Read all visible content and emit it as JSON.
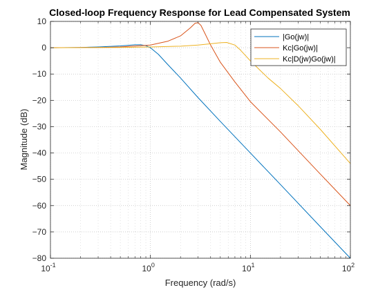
{
  "chart_data": {
    "type": "line",
    "title": "Closed-loop Frequency Response for Lead Compensated System",
    "xlabel": "Frequency (rad/s)",
    "ylabel": "Magnitude (dB)",
    "xscale": "log",
    "xlim": [
      0.1,
      100
    ],
    "ylim": [
      -80,
      10
    ],
    "x_ticks": [
      {
        "value": 0.1,
        "base": "10",
        "exp": "-1"
      },
      {
        "value": 1,
        "base": "10",
        "exp": "0"
      },
      {
        "value": 10,
        "base": "10",
        "exp": "1"
      },
      {
        "value": 100,
        "base": "10",
        "exp": "2"
      }
    ],
    "y_ticks": [
      10,
      0,
      -10,
      -20,
      -30,
      -40,
      -50,
      -60,
      -70,
      -80
    ],
    "grid": "on (minor, dotted)",
    "legend_position": "top-right",
    "series": [
      {
        "name": "|Go(jw)|",
        "color": "#0072BD",
        "x": [
          0.1,
          0.2,
          0.3,
          0.5,
          0.7,
          0.8,
          0.9,
          1.0,
          1.2,
          1.5,
          2,
          3,
          5,
          10,
          20,
          50,
          100
        ],
        "y": [
          0,
          0.1,
          0.3,
          0.7,
          1.1,
          1.1,
          0.8,
          0,
          -2.5,
          -6.5,
          -11.5,
          -19,
          -28,
          -40,
          -52,
          -68,
          -80
        ]
      },
      {
        "name": "Kc|Go(jw)|",
        "color": "#D95319",
        "x": [
          0.1,
          0.3,
          0.5,
          1.0,
          1.5,
          2.0,
          2.5,
          2.8,
          3.0,
          3.2,
          3.5,
          4.0,
          5.0,
          7.0,
          10,
          20,
          50,
          100
        ],
        "y": [
          0,
          0.1,
          0.3,
          1.0,
          2.5,
          4.5,
          7.5,
          9.3,
          9.5,
          8.5,
          5.5,
          1.0,
          -5.5,
          -13,
          -20.5,
          -32,
          -48,
          -60
        ]
      },
      {
        "name": "Kc|D(jw)Go(jw)|",
        "color": "#EDB120",
        "x": [
          0.1,
          0.5,
          1.0,
          2.0,
          3.0,
          4.0,
          5.0,
          5.8,
          7.0,
          8.0,
          10,
          15,
          20,
          30,
          50,
          100
        ],
        "y": [
          0,
          0.1,
          0.3,
          0.6,
          1.0,
          1.5,
          1.9,
          2.0,
          1.0,
          -1.0,
          -5.0,
          -11.5,
          -15.5,
          -22,
          -31,
          -44
        ]
      }
    ]
  }
}
